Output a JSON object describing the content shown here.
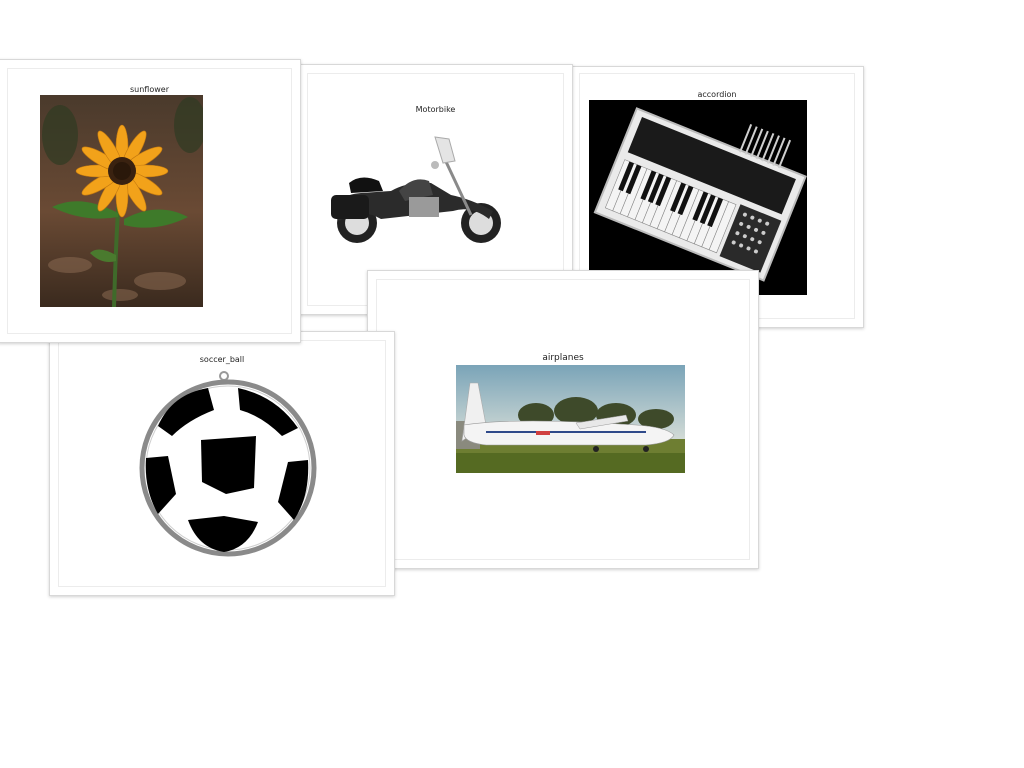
{
  "cards": {
    "sunflower": {
      "title": "sunflower"
    },
    "motorbike": {
      "title": "Motorbike"
    },
    "accordion": {
      "title": "accordion"
    },
    "soccer_ball": {
      "title": "soccer_ball"
    },
    "airplanes": {
      "title": "airplanes"
    }
  },
  "colors": {
    "background": "#ffffff",
    "card_border": "#d8d8d8",
    "title_text": "#222222"
  }
}
